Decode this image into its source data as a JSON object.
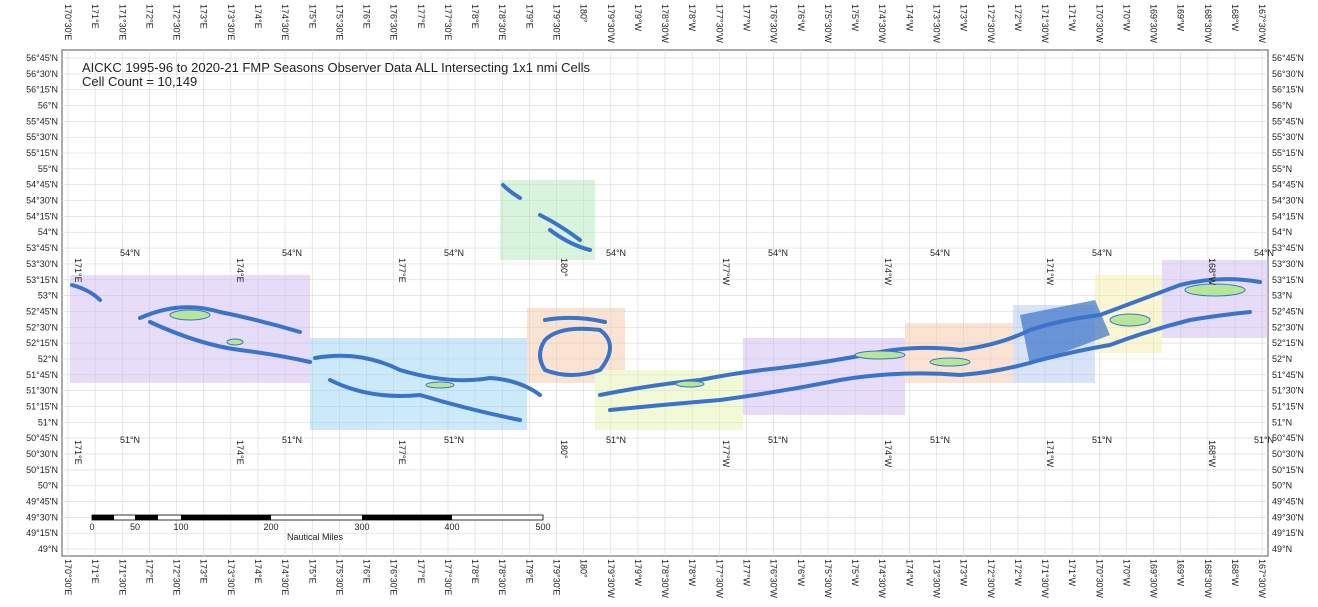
{
  "header": {
    "title": "AICKC 1995-96 to 2020-21 FMP Seasons Observer Data ALL Intersecting 1x1 nmi Cells",
    "subtitle": "Cell Count = 10,149"
  },
  "latitude_labels": [
    "56°45'N",
    "56°30'N",
    "56°15'N",
    "56°N",
    "55°45'N",
    "55°30'N",
    "55°15'N",
    "55°N",
    "54°45'N",
    "54°30'N",
    "54°15'N",
    "54°N",
    "53°45'N",
    "53°30'N",
    "53°15'N",
    "53°N",
    "52°45'N",
    "52°30'N",
    "52°15'N",
    "52°N",
    "51°45'N",
    "51°30'N",
    "51°15'N",
    "51°N",
    "50°45'N",
    "50°30'N",
    "50°15'N",
    "50°N",
    "49°45'N",
    "49°30'N",
    "49°15'N",
    "49°N"
  ],
  "longitude_labels": [
    "170°30'E",
    "171°E",
    "171°30'E",
    "172°E",
    "172°30'E",
    "173°E",
    "173°30'E",
    "174°E",
    "174°30'E",
    "175°E",
    "175°30'E",
    "176°E",
    "176°30'E",
    "177°E",
    "177°30'E",
    "178°E",
    "178°30'E",
    "179°E",
    "179°30'E",
    "180°",
    "179°30'W",
    "179°W",
    "178°30'W",
    "178°W",
    "177°30'W",
    "177°W",
    "176°30'W",
    "176°W",
    "175°30'W",
    "175°W",
    "174°30'W",
    "174°W",
    "173°30'W",
    "173°W",
    "172°30'W",
    "172°W",
    "171°30'W",
    "171°W",
    "170°30'W",
    "170°W",
    "169°30'W",
    "169°W",
    "168°30'W",
    "168°W",
    "167°30'W"
  ],
  "inner_labels": {
    "parallels": [
      "54°N",
      "51°N"
    ],
    "meridians": [
      "171°E",
      "174°E",
      "177°E",
      "180°",
      "177°W",
      "174°W",
      "171°W",
      "168°W"
    ]
  },
  "scale_bar": {
    "labels": [
      "0",
      "50",
      "100",
      "200",
      "300",
      "400",
      "500"
    ],
    "unit": "Nautical Miles"
  }
}
